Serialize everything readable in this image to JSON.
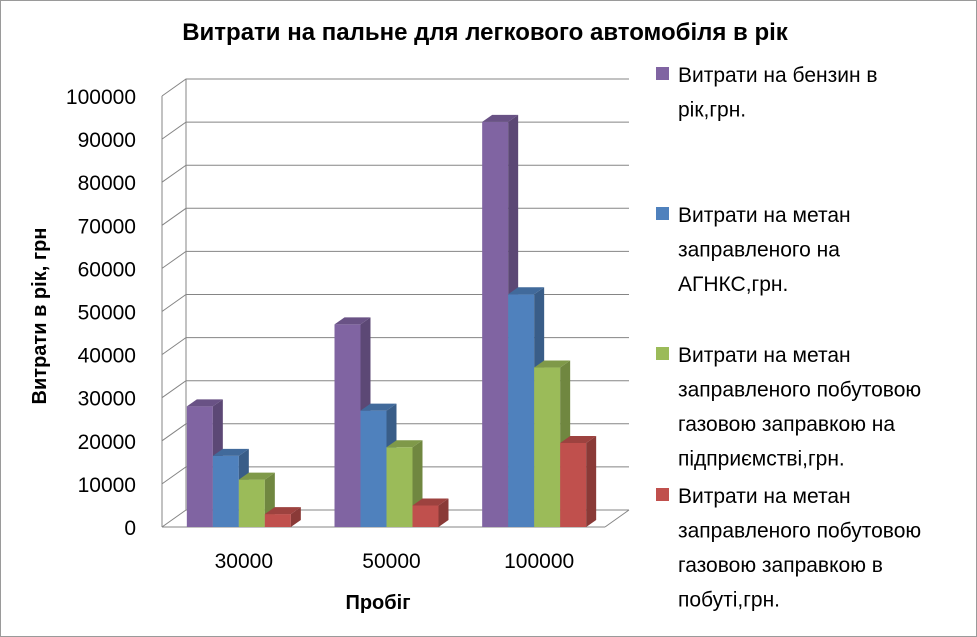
{
  "chart_data": {
    "type": "bar",
    "title": "Витрати на пальне для легкового автомобіля в рік",
    "xlabel": "Пробіг",
    "ylabel": "Витрати в рік, грн",
    "categories": [
      "30000",
      "50000",
      "100000"
    ],
    "ylim": [
      0,
      100000
    ],
    "yticks": [
      "0",
      "10000",
      "20000",
      "30000",
      "40000",
      "50000",
      "60000",
      "70000",
      "80000",
      "90000",
      "100000"
    ],
    "grid": true,
    "style": "3d-clustered-column",
    "legend_position": "right",
    "series": [
      {
        "name": "Витрати на бензин в рік,грн.",
        "legend_lines": [
          "Витрати на бензин в",
          "рік,грн."
        ],
        "color": "#8064A2",
        "values": [
          28000,
          47000,
          94000
        ]
      },
      {
        "name": "Витрати на метан заправленого на АГНКС,грн.",
        "legend_lines": [
          "Витрати на метан",
          "заправленого на",
          "АГНКС,грн."
        ],
        "color": "#4F81BD",
        "values": [
          16500,
          27000,
          54000
        ]
      },
      {
        "name": "Витрати на метан заправленого побутовою газовою заправкою на підприємстві,грн.",
        "legend_lines": [
          "Витрати на метан",
          "заправленого побутовою",
          "газовою заправкою на",
          "підприємстві,грн."
        ],
        "color": "#9BBB59",
        "values": [
          11000,
          18500,
          37000
        ]
      },
      {
        "name": "Витрати на метан заправленого побутовою газовою заправкою в побуті,грн.",
        "legend_lines": [
          "Витрати на метан",
          "заправленого побутовою",
          "газовою заправкою в",
          "побуті,грн."
        ],
        "color": "#C0504D",
        "values": [
          3000,
          5000,
          19500
        ]
      }
    ]
  }
}
